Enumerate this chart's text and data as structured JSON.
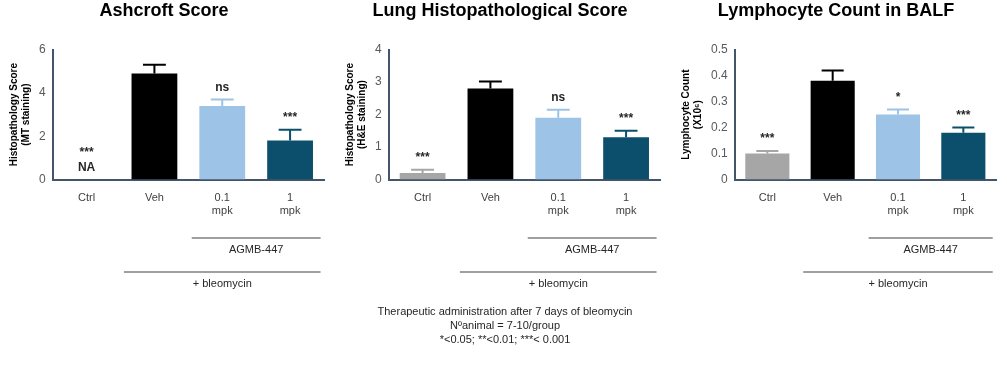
{
  "chart_data": [
    {
      "type": "bar",
      "title": "Ashcroft Score",
      "ylabel": "Histopathology Score\n(MT staining)",
      "categories": [
        "Ctrl",
        "Veh",
        "0.1\nmpk",
        "1\nmpk"
      ],
      "values": [
        null,
        4.9,
        3.4,
        1.8
      ],
      "errors": [
        null,
        0.4,
        0.3,
        0.5
      ],
      "value_labels": [
        "***\nNA",
        null,
        "ns",
        "***"
      ],
      "colors": [
        "#a6a6a6",
        "#000000",
        "#9dc3e6",
        "#0b4f6c"
      ],
      "ylim": [
        0,
        6
      ],
      "yticks": [
        0,
        2,
        4,
        6
      ],
      "grid": false,
      "legend": false,
      "annotations": [
        "AGMB-447",
        "+ bleomycin"
      ]
    },
    {
      "type": "bar",
      "title": "Lung Histopathological Score",
      "ylabel": "Histopathology Score\n(H&E staining)",
      "categories": [
        "Ctrl",
        "Veh",
        "0.1\nmpk",
        "1\nmpk"
      ],
      "values": [
        0.2,
        2.8,
        1.9,
        1.3
      ],
      "errors": [
        0.1,
        0.22,
        0.25,
        0.2
      ],
      "value_labels": [
        "***",
        null,
        "ns",
        "***"
      ],
      "colors": [
        "#a6a6a6",
        "#000000",
        "#9dc3e6",
        "#0b4f6c"
      ],
      "ylim": [
        0,
        4
      ],
      "yticks": [
        0,
        1,
        2,
        3,
        4
      ],
      "grid": false,
      "legend": false,
      "annotations": [
        "AGMB-447",
        "+ bleomycin",
        "Therapeutic administration after 7 days of bleomycin",
        "Nºanimal = 7-10/group",
        "*<0.05; **<0.01; ***< 0.001"
      ]
    },
    {
      "type": "bar",
      "title": "Lymphocyte Count in BALF",
      "ylabel": "Lymphocyte Count\n(X10⁶)",
      "categories": [
        "Ctrl",
        "Veh",
        "0.1\nmpk",
        "1\nmpk"
      ],
      "values": [
        0.1,
        0.38,
        0.25,
        0.18
      ],
      "errors": [
        0.01,
        0.04,
        0.02,
        0.02
      ],
      "value_labels": [
        "***",
        null,
        "*",
        "***"
      ],
      "colors": [
        "#a6a6a6",
        "#000000",
        "#9dc3e6",
        "#0b4f6c"
      ],
      "ylim": [
        0,
        0.5
      ],
      "yticks": [
        0,
        0.1,
        0.2,
        0.3,
        0.4,
        0.5
      ],
      "grid": false,
      "legend": false,
      "annotations": [
        "AGMB-447",
        "+ bleomycin"
      ]
    }
  ]
}
